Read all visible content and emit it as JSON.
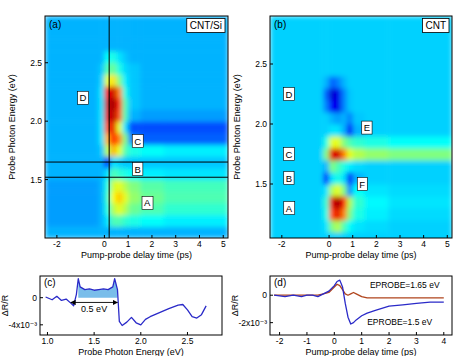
{
  "chart_data": [
    {
      "type": "heatmap",
      "title": "(a)",
      "subtitle": "CNT/Si",
      "xlabel": "Pump-probe delay time (ps)",
      "ylabel": "Probe Photon Energy (eV)",
      "xlim": [
        -2.5,
        5.2
      ],
      "ylim": [
        1.0,
        2.9
      ],
      "xticks": [
        -2,
        0,
        1,
        2,
        3,
        4,
        5
      ],
      "yticks": [
        1.5,
        {
          "value": 2,
          "label": "2.0"
        },
        2.5
      ],
      "zlim": [
        0,
        1
      ],
      "xbins": [
        -2.5,
        -0.25,
        0,
        0.25,
        0.5,
        0.75,
        1,
        1.5,
        2.5,
        5.2
      ],
      "ybins": [
        1.0,
        1.1,
        1.2,
        1.3,
        1.4,
        1.5,
        1.6,
        1.7,
        1.8,
        1.9,
        2.0,
        2.1,
        2.2,
        2.3,
        2.4,
        2.5,
        2.6,
        2.7,
        2.8,
        2.9
      ],
      "z": [
        [
          0.3,
          0.3,
          0.3,
          0.3,
          0.3,
          0.3,
          0.3,
          0.3,
          0.3
        ],
        [
          0.28,
          0.3,
          0.35,
          0.45,
          0.45,
          0.42,
          0.4,
          0.38,
          0.36
        ],
        [
          0.28,
          0.3,
          0.4,
          0.55,
          0.6,
          0.55,
          0.48,
          0.45,
          0.42
        ],
        [
          0.28,
          0.3,
          0.42,
          0.62,
          0.68,
          0.6,
          0.52,
          0.48,
          0.45
        ],
        [
          0.28,
          0.3,
          0.4,
          0.58,
          0.6,
          0.55,
          0.5,
          0.46,
          0.44
        ],
        [
          0.3,
          0.3,
          0.35,
          0.45,
          0.42,
          0.4,
          0.38,
          0.36,
          0.35
        ],
        [
          0.3,
          0.3,
          0.15,
          0.35,
          0.33,
          0.32,
          0.32,
          0.32,
          0.32
        ],
        [
          0.3,
          0.32,
          0.55,
          0.7,
          0.6,
          0.45,
          0.4,
          0.38,
          0.36
        ],
        [
          0.3,
          0.35,
          0.7,
          0.85,
          0.75,
          0.5,
          0.25,
          0.22,
          0.22
        ],
        [
          0.3,
          0.35,
          0.8,
          0.9,
          0.6,
          0.35,
          0.2,
          0.2,
          0.2
        ],
        [
          0.3,
          0.35,
          0.9,
          0.95,
          0.8,
          0.45,
          0.3,
          0.28,
          0.28
        ],
        [
          0.3,
          0.35,
          0.92,
          0.97,
          0.85,
          0.45,
          0.32,
          0.3,
          0.3
        ],
        [
          0.3,
          0.35,
          0.88,
          0.93,
          0.75,
          0.4,
          0.32,
          0.3,
          0.3
        ],
        [
          0.3,
          0.33,
          0.6,
          0.65,
          0.5,
          0.36,
          0.32,
          0.3,
          0.3
        ],
        [
          0.3,
          0.32,
          0.45,
          0.48,
          0.4,
          0.34,
          0.32,
          0.3,
          0.3
        ],
        [
          0.3,
          0.3,
          0.38,
          0.4,
          0.35,
          0.32,
          0.3,
          0.3,
          0.3
        ],
        [
          0.3,
          0.3,
          0.3,
          0.3,
          0.3,
          0.3,
          0.3,
          0.3,
          0.3
        ],
        [
          0.3,
          0.3,
          0.3,
          0.3,
          0.3,
          0.3,
          0.3,
          0.3,
          0.3
        ],
        [
          0.3,
          0.3,
          0.3,
          0.3,
          0.3,
          0.3,
          0.3,
          0.3,
          0.3
        ]
      ],
      "hlines": [
        1.65,
        1.52
      ],
      "vlines": [
        0.2
      ],
      "annotations": [
        {
          "text": "D",
          "x": -0.9,
          "y": 2.2
        },
        {
          "text": "C",
          "x": 1.4,
          "y": 1.83
        },
        {
          "text": "B",
          "x": 1.4,
          "y": 1.59
        },
        {
          "text": "A",
          "x": 1.8,
          "y": 1.3
        }
      ]
    },
    {
      "type": "heatmap",
      "title": "(b)",
      "subtitle": "CNT",
      "xlabel": "Pump-probe delay time (ps)",
      "ylabel": "Probe Photon Energy (eV)",
      "xlim": [
        -2.5,
        5.2
      ],
      "ylim": [
        1.05,
        2.9
      ],
      "xticks": [
        -2,
        0,
        1,
        2,
        3,
        4,
        5
      ],
      "yticks": [
        1.5,
        {
          "value": 2,
          "label": "2.0"
        },
        2.5
      ],
      "zlim": [
        0,
        1
      ],
      "xbins": [
        -2.5,
        -0.25,
        0,
        0.25,
        0.5,
        0.75,
        1,
        1.5,
        2.5,
        5.2
      ],
      "ybins": [
        1.0,
        1.1,
        1.2,
        1.3,
        1.4,
        1.5,
        1.6,
        1.7,
        1.8,
        1.9,
        2.0,
        2.1,
        2.2,
        2.3,
        2.4,
        2.5,
        2.6,
        2.7,
        2.8,
        2.9
      ],
      "z": [
        [
          0.33,
          0.33,
          0.33,
          0.33,
          0.33,
          0.33,
          0.33,
          0.33,
          0.33
        ],
        [
          0.33,
          0.35,
          0.5,
          0.55,
          0.45,
          0.38,
          0.35,
          0.34,
          0.33
        ],
        [
          0.33,
          0.4,
          0.8,
          0.9,
          0.75,
          0.5,
          0.4,
          0.36,
          0.34
        ],
        [
          0.33,
          0.42,
          0.9,
          0.97,
          0.85,
          0.55,
          0.42,
          0.37,
          0.35
        ],
        [
          0.33,
          0.35,
          0.55,
          0.6,
          0.5,
          0.25,
          0.38,
          0.35,
          0.34
        ],
        [
          0.33,
          0.15,
          0.35,
          0.4,
          0.35,
          0.12,
          0.3,
          0.33,
          0.33
        ],
        [
          0.33,
          0.3,
          0.5,
          0.45,
          0.4,
          0.36,
          0.34,
          0.33,
          0.33
        ],
        [
          0.33,
          0.5,
          0.9,
          0.92,
          0.75,
          0.6,
          0.55,
          0.52,
          0.5
        ],
        [
          0.33,
          0.4,
          0.6,
          0.6,
          0.5,
          0.45,
          0.42,
          0.4,
          0.38
        ],
        [
          0.33,
          0.33,
          0.35,
          0.35,
          0.3,
          0.12,
          0.3,
          0.33,
          0.33
        ],
        [
          0.33,
          0.33,
          0.3,
          0.28,
          0.3,
          0.25,
          0.32,
          0.33,
          0.33
        ],
        [
          0.33,
          0.25,
          0.12,
          0.1,
          0.25,
          0.32,
          0.33,
          0.33,
          0.33
        ],
        [
          0.33,
          0.22,
          0.08,
          0.1,
          0.25,
          0.32,
          0.33,
          0.33,
          0.33
        ],
        [
          0.33,
          0.3,
          0.22,
          0.25,
          0.3,
          0.33,
          0.33,
          0.33,
          0.33
        ],
        [
          0.33,
          0.33,
          0.33,
          0.33,
          0.33,
          0.33,
          0.33,
          0.33,
          0.33
        ],
        [
          0.33,
          0.33,
          0.33,
          0.33,
          0.33,
          0.33,
          0.33,
          0.33,
          0.33
        ],
        [
          0.33,
          0.33,
          0.33,
          0.33,
          0.33,
          0.33,
          0.33,
          0.33,
          0.33
        ],
        [
          0.33,
          0.33,
          0.33,
          0.33,
          0.33,
          0.33,
          0.33,
          0.33,
          0.33
        ],
        [
          0.33,
          0.33,
          0.33,
          0.33,
          0.33,
          0.33,
          0.33,
          0.33,
          0.33
        ]
      ],
      "annotations": [
        {
          "text": "D",
          "x": -1.7,
          "y": 2.25
        },
        {
          "text": "E",
          "x": 1.6,
          "y": 1.97
        },
        {
          "text": "C",
          "x": -1.7,
          "y": 1.75
        },
        {
          "text": "B",
          "x": -1.7,
          "y": 1.55
        },
        {
          "text": "F",
          "x": 1.4,
          "y": 1.5
        },
        {
          "text": "A",
          "x": -1.7,
          "y": 1.3
        }
      ]
    },
    {
      "type": "line",
      "title": "(c)",
      "xlabel": "Probe Photon Energy (eV)",
      "ylabel": "ΔR/R",
      "xlim": [
        0.92,
        2.87
      ],
      "ylim": [
        -0.0055,
        0.0032
      ],
      "xticks": [
        {
          "value": 1,
          "label": "1.0"
        },
        1.5,
        {
          "value": 2,
          "label": "2.0"
        },
        2.5
      ],
      "yticks": [
        0,
        {
          "value": -0.004,
          "label": "-4x10⁻³"
        }
      ],
      "x": [
        0.98,
        1.05,
        1.1,
        1.15,
        1.2,
        1.25,
        1.28,
        1.31,
        1.33,
        1.35,
        1.4,
        1.45,
        1.5,
        1.55,
        1.6,
        1.65,
        1.7,
        1.72,
        1.75,
        1.77,
        1.8,
        1.85,
        1.9,
        1.95,
        2.0,
        2.05,
        2.1,
        2.2,
        2.3,
        2.4,
        2.45,
        2.5,
        2.55,
        2.6,
        2.65,
        2.7
      ],
      "series": [
        {
          "color": "#2a2ac8",
          "values": [
            0.0001,
            -0.0003,
            0.0002,
            -0.0004,
            -0.0002,
            -0.0008,
            -0.0012,
            0.0005,
            0.0028,
            0.0016,
            0.0012,
            0.0013,
            0.0011,
            0.0012,
            0.0013,
            0.0012,
            0.0016,
            0.0028,
            0.0012,
            -0.0035,
            -0.0041,
            -0.0036,
            -0.0029,
            -0.0037,
            -0.004,
            -0.0032,
            -0.0028,
            -0.0022,
            -0.0016,
            -0.0011,
            -0.001,
            -0.0018,
            -0.0028,
            -0.003,
            -0.0025,
            -0.0012
          ]
        }
      ],
      "shade_x": [
        1.33,
        1.75
      ],
      "annotations": [
        {
          "text": "0.5 eV",
          "x": 1.5,
          "y": -0.0017,
          "arrow_x": [
            1.25,
            1.75
          ],
          "arrow_y": -0.0007
        }
      ]
    },
    {
      "type": "line",
      "title": "(d)",
      "xlabel": "Pump-probe delay time (ps)",
      "ylabel": "ΔR/R",
      "xlim": [
        -2.35,
        4.3
      ],
      "ylim": [
        -0.0029,
        0.0014
      ],
      "xticks": [
        -2,
        -1,
        0,
        1,
        2,
        3,
        4
      ],
      "yticks": [
        0,
        {
          "value": -0.002,
          "label": "-2x10⁻³"
        }
      ],
      "x": [
        -2.2,
        -1.8,
        -1.5,
        -1.2,
        -1.0,
        -0.8,
        -0.6,
        -0.4,
        -0.2,
        0,
        0.1,
        0.2,
        0.3,
        0.4,
        0.5,
        0.6,
        0.7,
        0.8,
        1.0,
        1.2,
        1.5,
        2.0,
        2.5,
        3.0,
        3.5,
        4.0
      ],
      "series": [
        {
          "name": "EPROBE=1.65 eV",
          "color": "#b0441c",
          "label_x": 1.3,
          "label_y": 0.0005,
          "values": [
            0,
            0,
            0,
            0,
            0,
            0,
            0,
            0.0001,
            0.0002,
            0.0006,
            0.0008,
            0.0007,
            0.0004,
            0.0001,
            0.0,
            0.0001,
            0.0002,
            0.0001,
            -0.0001,
            -0.0002,
            -0.0002,
            -0.0002,
            -0.0002,
            -0.0002,
            -0.0002,
            -0.0002
          ]
        },
        {
          "name": "EPROBE=1.5 eV",
          "color": "#2a2ac8",
          "label_x": 1.2,
          "label_y": -0.0022,
          "values": [
            0.0,
            -0.0001,
            0.0,
            -0.0001,
            0.0,
            0.0,
            -0.0001,
            0.0001,
            0.0003,
            0.0007,
            0.001,
            0.0011,
            0.0006,
            -0.0006,
            -0.0016,
            -0.0021,
            -0.002,
            -0.0018,
            -0.0015,
            -0.0013,
            -0.0011,
            -0.0008,
            -0.0007,
            -0.0006,
            -0.0005,
            -0.0005
          ]
        }
      ]
    }
  ]
}
